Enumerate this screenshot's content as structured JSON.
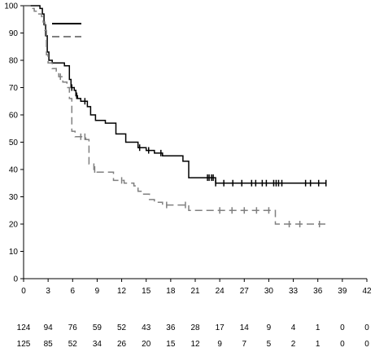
{
  "chart_data": {
    "type": "line",
    "title": "",
    "xlabel": "",
    "ylabel": "",
    "xlim": [
      0,
      42
    ],
    "ylim": [
      0,
      100
    ],
    "x_ticks": [
      "0",
      "3",
      "6",
      "9",
      "12",
      "15",
      "18",
      "21",
      "24",
      "27",
      "30",
      "33",
      "36",
      "39",
      "42"
    ],
    "y_ticks": [
      "0",
      "10",
      "20",
      "30",
      "40",
      "50",
      "60",
      "70",
      "80",
      "90",
      "100"
    ],
    "grid": false,
    "legend": {
      "placement": "top-left",
      "labels_visible": false
    },
    "series": [
      {
        "color": "#000000",
        "style": "solid",
        "steps": [
          [
            0,
            100
          ],
          [
            1.5,
            100
          ],
          [
            2,
            99
          ],
          [
            2.3,
            97
          ],
          [
            2.5,
            93
          ],
          [
            2.7,
            89
          ],
          [
            2.9,
            83
          ],
          [
            3.1,
            80
          ],
          [
            3.5,
            79
          ],
          [
            5,
            78
          ],
          [
            5.6,
            73
          ],
          [
            5.8,
            70
          ],
          [
            6.2,
            69
          ],
          [
            6.4,
            67
          ],
          [
            6.6,
            66
          ],
          [
            7,
            65
          ],
          [
            7.8,
            63
          ],
          [
            8.2,
            60
          ],
          [
            8.8,
            58
          ],
          [
            10,
            57
          ],
          [
            11.3,
            53
          ],
          [
            12.5,
            50
          ],
          [
            14,
            48
          ],
          [
            15,
            47
          ],
          [
            16,
            46
          ],
          [
            17,
            45
          ],
          [
            19.5,
            43
          ],
          [
            20.2,
            37
          ],
          [
            23.5,
            35
          ],
          [
            37,
            35
          ]
        ],
        "censor_x": [
          5.9,
          6.5,
          7.5,
          14.2,
          15.3,
          16.8,
          22.5,
          22.7,
          23,
          23.2,
          23.5,
          24.5,
          25.6,
          26.7,
          27.9,
          28.4,
          29.2,
          29.7,
          30.6,
          30.9,
          31.2,
          31.6,
          34.5,
          35.1,
          36.1,
          37
        ]
      },
      {
        "color": "#808080",
        "style": "dashed",
        "steps": [
          [
            0,
            100
          ],
          [
            0.8,
            99
          ],
          [
            1.3,
            98
          ],
          [
            1.7,
            97
          ],
          [
            2.2,
            96
          ],
          [
            2.4,
            94
          ],
          [
            2.6,
            91
          ],
          [
            2.8,
            82
          ],
          [
            3,
            79
          ],
          [
            3.5,
            77
          ],
          [
            4,
            76
          ],
          [
            4.3,
            74
          ],
          [
            4.8,
            72
          ],
          [
            5.3,
            70
          ],
          [
            5.6,
            66
          ],
          [
            5.9,
            54
          ],
          [
            6.3,
            52
          ],
          [
            7.6,
            51
          ],
          [
            8,
            42
          ],
          [
            8.6,
            40
          ],
          [
            9,
            39
          ],
          [
            11,
            36
          ],
          [
            12.3,
            35
          ],
          [
            13.5,
            34
          ],
          [
            14,
            32
          ],
          [
            14.5,
            31
          ],
          [
            15.4,
            29
          ],
          [
            16,
            28
          ],
          [
            17,
            27
          ],
          [
            20.2,
            25
          ],
          [
            30.8,
            20
          ],
          [
            37,
            20
          ]
        ],
        "censor_x": [
          4.5,
          7,
          7.5,
          8.7,
          12,
          17.5,
          19.8,
          24,
          25.5,
          27,
          28.5,
          30,
          32.5,
          33.8,
          36.2
        ]
      }
    ],
    "risk_table": [
      [
        "124",
        "94",
        "76",
        "59",
        "52",
        "43",
        "36",
        "28",
        "17",
        "14",
        "9",
        "4",
        "1",
        "0",
        "0"
      ],
      [
        "125",
        "85",
        "52",
        "34",
        "26",
        "20",
        "15",
        "12",
        "9",
        "7",
        "5",
        "2",
        "1",
        "0",
        "0"
      ]
    ]
  }
}
